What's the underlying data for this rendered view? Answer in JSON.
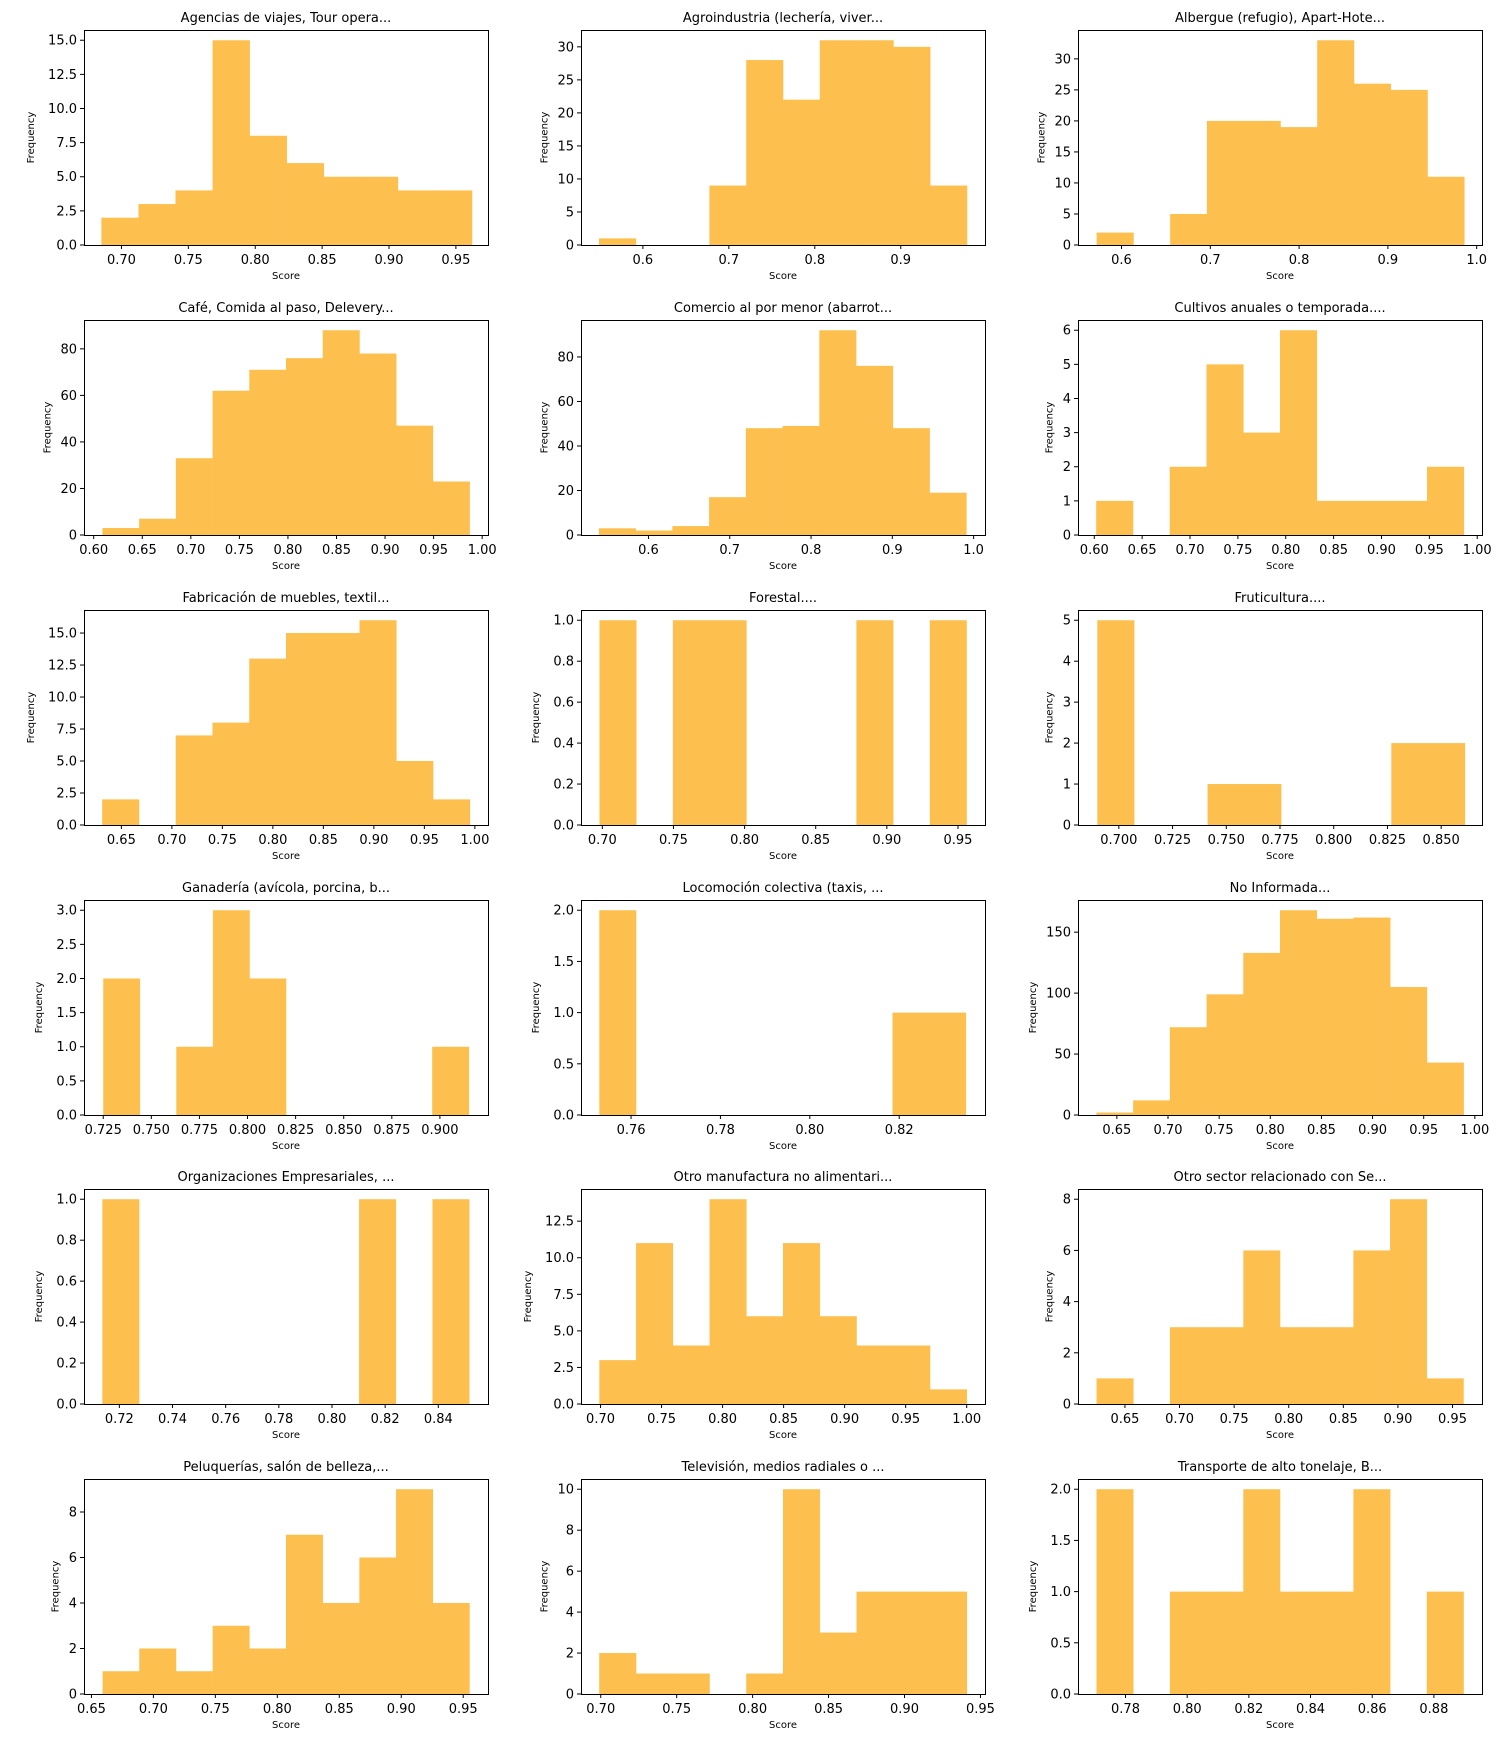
{
  "bar_color": "#FDBF4E",
  "chart_data": [
    {
      "type": "bar",
      "title": "Agencias de viajes, Tour opera...",
      "xlabel": "Score",
      "ylabel": "Frequency",
      "bins": {
        "start": 0.685,
        "width": 0.0277
      },
      "values": [
        2,
        3,
        4,
        15,
        8,
        6,
        5,
        5,
        4,
        4
      ],
      "xlim": [
        0.672,
        0.974
      ],
      "ylim": [
        0,
        15.75
      ],
      "xticks": [
        0.7,
        0.75,
        0.8,
        0.85,
        0.9,
        0.95
      ],
      "xtick_labels": [
        "0.70",
        "0.75",
        "0.80",
        "0.85",
        "0.90",
        "0.95"
      ],
      "yticks": [
        0,
        2.5,
        5,
        7.5,
        10,
        12.5,
        15
      ],
      "ytick_labels": [
        "0.0",
        "2.5",
        "5.0",
        "7.5",
        "10.0",
        "12.5",
        "15.0"
      ]
    },
    {
      "type": "bar",
      "title": "Agroindustria (lechería, viver...",
      "xlabel": "Score",
      "ylabel": "Frequency",
      "bins": {
        "start": 0.549,
        "width": 0.0428
      },
      "values": [
        1,
        0,
        0,
        9,
        28,
        22,
        31,
        31,
        30,
        9
      ],
      "xlim": [
        0.528,
        0.998
      ],
      "ylim": [
        0,
        32.55
      ],
      "xticks": [
        0.6,
        0.7,
        0.8,
        0.9
      ],
      "xtick_labels": [
        "0.6",
        "0.7",
        "0.8",
        "0.9"
      ],
      "yticks": [
        0,
        5,
        10,
        15,
        20,
        25,
        30
      ],
      "ytick_labels": [
        "0",
        "5",
        "10",
        "15",
        "20",
        "25",
        "30"
      ]
    },
    {
      "type": "bar",
      "title": "Albergue (refugio), Apart-Hote...",
      "xlabel": "Score",
      "ylabel": "Frequency",
      "bins": {
        "start": 0.572,
        "width": 0.0414
      },
      "values": [
        2,
        0,
        5,
        20,
        20,
        19,
        33,
        26,
        25,
        11
      ],
      "xlim": [
        0.551,
        1.006
      ],
      "ylim": [
        0,
        34.65
      ],
      "xticks": [
        0.6,
        0.7,
        0.8,
        0.9,
        1.0
      ],
      "xtick_labels": [
        "0.6",
        "0.7",
        "0.8",
        "0.9",
        "1.0"
      ],
      "yticks": [
        0,
        5,
        10,
        15,
        20,
        25,
        30
      ],
      "ytick_labels": [
        "0",
        "5",
        "10",
        "15",
        "20",
        "25",
        "30"
      ]
    },
    {
      "type": "bar",
      "title": "Café, Comida al paso, Delevery...",
      "xlabel": "Score",
      "ylabel": "Frequency",
      "bins": {
        "start": 0.609,
        "width": 0.0378
      },
      "values": [
        3,
        7,
        33,
        62,
        71,
        76,
        88,
        78,
        47,
        23
      ],
      "xlim": [
        0.59,
        1.006
      ],
      "ylim": [
        0,
        92.4
      ],
      "xticks": [
        0.6,
        0.65,
        0.7,
        0.75,
        0.8,
        0.85,
        0.9,
        0.95,
        1.0
      ],
      "xtick_labels": [
        "0.60",
        "0.65",
        "0.70",
        "0.75",
        "0.80",
        "0.85",
        "0.90",
        "0.95",
        "1.00"
      ],
      "yticks": [
        0,
        20,
        40,
        60,
        80
      ],
      "ytick_labels": [
        "0",
        "20",
        "40",
        "60",
        "80"
      ]
    },
    {
      "type": "bar",
      "title": "Comercio al por menor (abarrot...",
      "xlabel": "Score",
      "ylabel": "Frequency",
      "bins": {
        "start": 0.539,
        "width": 0.0452
      },
      "values": [
        3,
        2,
        4,
        17,
        48,
        49,
        92,
        76,
        48,
        19
      ],
      "xlim": [
        0.517,
        1.014
      ],
      "ylim": [
        0,
        96.6
      ],
      "xticks": [
        0.6,
        0.7,
        0.8,
        0.9,
        1.0
      ],
      "xtick_labels": [
        "0.6",
        "0.7",
        "0.8",
        "0.9",
        "1.0"
      ],
      "yticks": [
        0,
        20,
        40,
        60,
        80
      ],
      "ytick_labels": [
        "0",
        "20",
        "40",
        "60",
        "80"
      ]
    },
    {
      "type": "bar",
      "title": "Cultivos anuales o temporada....",
      "xlabel": "Score",
      "ylabel": "Frequency",
      "bins": {
        "start": 0.602,
        "width": 0.0384
      },
      "values": [
        1,
        0,
        2,
        5,
        3,
        6,
        1,
        1,
        1,
        2
      ],
      "xlim": [
        0.583,
        1.005
      ],
      "ylim": [
        0,
        6.3
      ],
      "xticks": [
        0.6,
        0.65,
        0.7,
        0.75,
        0.8,
        0.85,
        0.9,
        0.95,
        1.0
      ],
      "xtick_labels": [
        "0.60",
        "0.65",
        "0.70",
        "0.75",
        "0.80",
        "0.85",
        "0.90",
        "0.95",
        "1.00"
      ],
      "yticks": [
        0,
        1,
        2,
        3,
        4,
        5,
        6
      ],
      "ytick_labels": [
        "0",
        "1",
        "2",
        "3",
        "4",
        "5",
        "6"
      ]
    },
    {
      "type": "bar",
      "title": "Fabricación de muebles, textil...",
      "xlabel": "Score",
      "ylabel": "Frequency",
      "bins": {
        "start": 0.631,
        "width": 0.0364
      },
      "values": [
        2,
        0,
        7,
        8,
        13,
        15,
        15,
        16,
        5,
        2
      ],
      "xlim": [
        0.613,
        1.013
      ],
      "ylim": [
        0,
        16.8
      ],
      "xticks": [
        0.65,
        0.7,
        0.75,
        0.8,
        0.85,
        0.9,
        0.95,
        1.0
      ],
      "xtick_labels": [
        "0.65",
        "0.70",
        "0.75",
        "0.80",
        "0.85",
        "0.90",
        "0.95",
        "1.00"
      ],
      "yticks": [
        0,
        2.5,
        5,
        7.5,
        10,
        12.5,
        15
      ],
      "ytick_labels": [
        "0.0",
        "2.5",
        "5.0",
        "7.5",
        "10.0",
        "12.5",
        "15.0"
      ]
    },
    {
      "type": "bar",
      "title": "Forestal....",
      "xlabel": "Score",
      "ylabel": "Frequency",
      "bins": {
        "start": 0.698,
        "width": 0.0258
      },
      "values": [
        1,
        0,
        1,
        1,
        0,
        0,
        0,
        1,
        0,
        1
      ],
      "xlim": [
        0.685,
        0.969
      ],
      "ylim": [
        0,
        1.05
      ],
      "xticks": [
        0.7,
        0.75,
        0.8,
        0.85,
        0.9,
        0.95
      ],
      "xtick_labels": [
        "0.70",
        "0.75",
        "0.80",
        "0.85",
        "0.90",
        "0.95"
      ],
      "yticks": [
        0,
        0.2,
        0.4,
        0.6,
        0.8,
        1.0
      ],
      "ytick_labels": [
        "0.0",
        "0.2",
        "0.4",
        "0.6",
        "0.8",
        "1.0"
      ]
    },
    {
      "type": "bar",
      "title": "Fruticultura....",
      "xlabel": "Score",
      "ylabel": "Frequency",
      "bins": {
        "start": 0.69,
        "width": 0.0171
      },
      "values": [
        5,
        0,
        0,
        1,
        1,
        0,
        0,
        0,
        2,
        2
      ],
      "xlim": [
        0.681,
        0.869
      ],
      "ylim": [
        0,
        5.25
      ],
      "xticks": [
        0.7,
        0.725,
        0.75,
        0.775,
        0.8,
        0.825,
        0.85
      ],
      "xtick_labels": [
        "0.700",
        "0.725",
        "0.750",
        "0.775",
        "0.800",
        "0.825",
        "0.850"
      ],
      "yticks": [
        0,
        1,
        2,
        3,
        4,
        5
      ],
      "ytick_labels": [
        "0",
        "1",
        "2",
        "3",
        "4",
        "5"
      ]
    },
    {
      "type": "bar",
      "title": "Ganadería (avícola, porcina, b...",
      "xlabel": "Score",
      "ylabel": "Frequency",
      "bins": {
        "start": 0.725,
        "width": 0.019
      },
      "values": [
        2,
        0,
        1,
        3,
        2,
        0,
        0,
        0,
        0,
        1
      ],
      "xlim": [
        0.715,
        0.925
      ],
      "ylim": [
        0,
        3.15
      ],
      "xticks": [
        0.725,
        0.75,
        0.775,
        0.8,
        0.825,
        0.85,
        0.875,
        0.9
      ],
      "xtick_labels": [
        "0.725",
        "0.750",
        "0.775",
        "0.800",
        "0.825",
        "0.850",
        "0.875",
        "0.900"
      ],
      "yticks": [
        0,
        0.5,
        1,
        1.5,
        2,
        2.5,
        3
      ],
      "ytick_labels": [
        "0.0",
        "0.5",
        "1.0",
        "1.5",
        "2.0",
        "2.5",
        "3.0"
      ]
    },
    {
      "type": "bar",
      "title": "Locomoción colectiva  (taxis, ...",
      "xlabel": "Score",
      "ylabel": "Frequency",
      "bins": {
        "start": 0.7529,
        "width": 0.0082
      },
      "values": [
        2,
        0,
        0,
        0,
        0,
        0,
        0,
        0,
        1,
        1
      ],
      "xlim": [
        0.7488,
        0.8392
      ],
      "ylim": [
        0,
        2.1
      ],
      "xticks": [
        0.76,
        0.78,
        0.8,
        0.82
      ],
      "xtick_labels": [
        "0.76",
        "0.78",
        "0.80",
        "0.82"
      ],
      "yticks": [
        0,
        0.5,
        1,
        1.5,
        2
      ],
      "ytick_labels": [
        "0.0",
        "0.5",
        "1.0",
        "1.5",
        "2.0"
      ]
    },
    {
      "type": "bar",
      "title": "No Informada...",
      "xlabel": "Score",
      "ylabel": "Frequency",
      "bins": {
        "start": 0.63,
        "width": 0.0359
      },
      "values": [
        2,
        12,
        72,
        99,
        133,
        168,
        161,
        162,
        105,
        43
      ],
      "xlim": [
        0.612,
        1.007
      ],
      "ylim": [
        0,
        176.4
      ],
      "xticks": [
        0.65,
        0.7,
        0.75,
        0.8,
        0.85,
        0.9,
        0.95,
        1.0
      ],
      "xtick_labels": [
        "0.65",
        "0.70",
        "0.75",
        "0.80",
        "0.85",
        "0.90",
        "0.95",
        "1.00"
      ],
      "yticks": [
        0,
        50,
        100,
        150
      ],
      "ytick_labels": [
        "0",
        "50",
        "100",
        "150"
      ]
    },
    {
      "type": "bar",
      "title": "Organizaciones Empresariales, ...",
      "xlabel": "Score",
      "ylabel": "Frequency",
      "bins": {
        "start": 0.7136,
        "width": 0.0138
      },
      "values": [
        1,
        0,
        0,
        0,
        0,
        0,
        0,
        1,
        0,
        1
      ],
      "xlim": [
        0.7067,
        0.8587
      ],
      "ylim": [
        0,
        1.05
      ],
      "xticks": [
        0.72,
        0.74,
        0.76,
        0.78,
        0.8,
        0.82,
        0.84
      ],
      "xtick_labels": [
        "0.72",
        "0.74",
        "0.76",
        "0.78",
        "0.80",
        "0.82",
        "0.84"
      ],
      "yticks": [
        0,
        0.2,
        0.4,
        0.6,
        0.8,
        1.0
      ],
      "ytick_labels": [
        "0.0",
        "0.2",
        "0.4",
        "0.6",
        "0.8",
        "1.0"
      ]
    },
    {
      "type": "bar",
      "title": "Otro manufactura no alimentari...",
      "xlabel": "Score",
      "ylabel": "Frequency",
      "bins": {
        "start": 0.699,
        "width": 0.0301
      },
      "values": [
        3,
        11,
        4,
        14,
        6,
        11,
        6,
        4,
        4,
        1
      ],
      "xlim": [
        0.684,
        1.015
      ],
      "ylim": [
        0,
        14.7
      ],
      "xticks": [
        0.7,
        0.75,
        0.8,
        0.85,
        0.9,
        0.95,
        1.0
      ],
      "xtick_labels": [
        "0.70",
        "0.75",
        "0.80",
        "0.85",
        "0.90",
        "0.95",
        "1.00"
      ],
      "yticks": [
        0,
        2.5,
        5,
        7.5,
        10,
        12.5
      ],
      "ytick_labels": [
        "0.0",
        "2.5",
        "5.0",
        "7.5",
        "10.0",
        "12.5"
      ]
    },
    {
      "type": "bar",
      "title": "Otro sector relacionado con Se...",
      "xlabel": "Score",
      "ylabel": "Frequency",
      "bins": {
        "start": 0.624,
        "width": 0.0336
      },
      "values": [
        1,
        0,
        3,
        3,
        6,
        3,
        3,
        6,
        8,
        1
      ],
      "xlim": [
        0.607,
        0.977
      ],
      "ylim": [
        0,
        8.4
      ],
      "xticks": [
        0.65,
        0.7,
        0.75,
        0.8,
        0.85,
        0.9,
        0.95
      ],
      "xtick_labels": [
        "0.65",
        "0.70",
        "0.75",
        "0.80",
        "0.85",
        "0.90",
        "0.95"
      ],
      "yticks": [
        0,
        2,
        4,
        6,
        8
      ],
      "ytick_labels": [
        "0",
        "2",
        "4",
        "6",
        "8"
      ]
    },
    {
      "type": "bar",
      "title": "Peluquerías, salón de belleza,...",
      "xlabel": "Score",
      "ylabel": "Frequency",
      "bins": {
        "start": 0.659,
        "width": 0.0296
      },
      "values": [
        1,
        2,
        1,
        3,
        2,
        7,
        4,
        6,
        9,
        4
      ],
      "xlim": [
        0.644,
        0.97
      ],
      "ylim": [
        0,
        9.45
      ],
      "xticks": [
        0.65,
        0.7,
        0.75,
        0.8,
        0.85,
        0.9,
        0.95
      ],
      "xtick_labels": [
        "0.65",
        "0.70",
        "0.75",
        "0.80",
        "0.85",
        "0.90",
        "0.95"
      ],
      "yticks": [
        0,
        2,
        4,
        6,
        8
      ],
      "ytick_labels": [
        "0",
        "2",
        "4",
        "6",
        "8"
      ]
    },
    {
      "type": "bar",
      "title": "Televisión, medios radiales o ...",
      "xlabel": "Score",
      "ylabel": "Frequency",
      "bins": {
        "start": 0.699,
        "width": 0.0242
      },
      "values": [
        2,
        1,
        1,
        0,
        1,
        10,
        3,
        5,
        5,
        5
      ],
      "xlim": [
        0.687,
        0.953
      ],
      "ylim": [
        0,
        10.5
      ],
      "xticks": [
        0.7,
        0.75,
        0.8,
        0.85,
        0.9,
        0.95
      ],
      "xtick_labels": [
        "0.70",
        "0.75",
        "0.80",
        "0.85",
        "0.90",
        "0.95"
      ],
      "yticks": [
        0,
        2,
        4,
        6,
        8,
        10
      ],
      "ytick_labels": [
        "0",
        "2",
        "4",
        "6",
        "8",
        "10"
      ]
    },
    {
      "type": "bar",
      "title": "Transporte de alto tonelaje, B...",
      "xlabel": "Score",
      "ylabel": "Frequency",
      "bins": {
        "start": 0.7706,
        "width": 0.0119
      },
      "values": [
        2,
        0,
        1,
        1,
        2,
        1,
        1,
        2,
        0,
        1
      ],
      "xlim": [
        0.7646,
        0.8956
      ],
      "ylim": [
        0,
        2.1
      ],
      "xticks": [
        0.78,
        0.8,
        0.82,
        0.84,
        0.86,
        0.88
      ],
      "xtick_labels": [
        "0.78",
        "0.80",
        "0.82",
        "0.84",
        "0.86",
        "0.88"
      ],
      "yticks": [
        0,
        0.5,
        1,
        1.5,
        2
      ],
      "ytick_labels": [
        "0.0",
        "0.5",
        "1.0",
        "1.5",
        "2.0"
      ]
    }
  ]
}
